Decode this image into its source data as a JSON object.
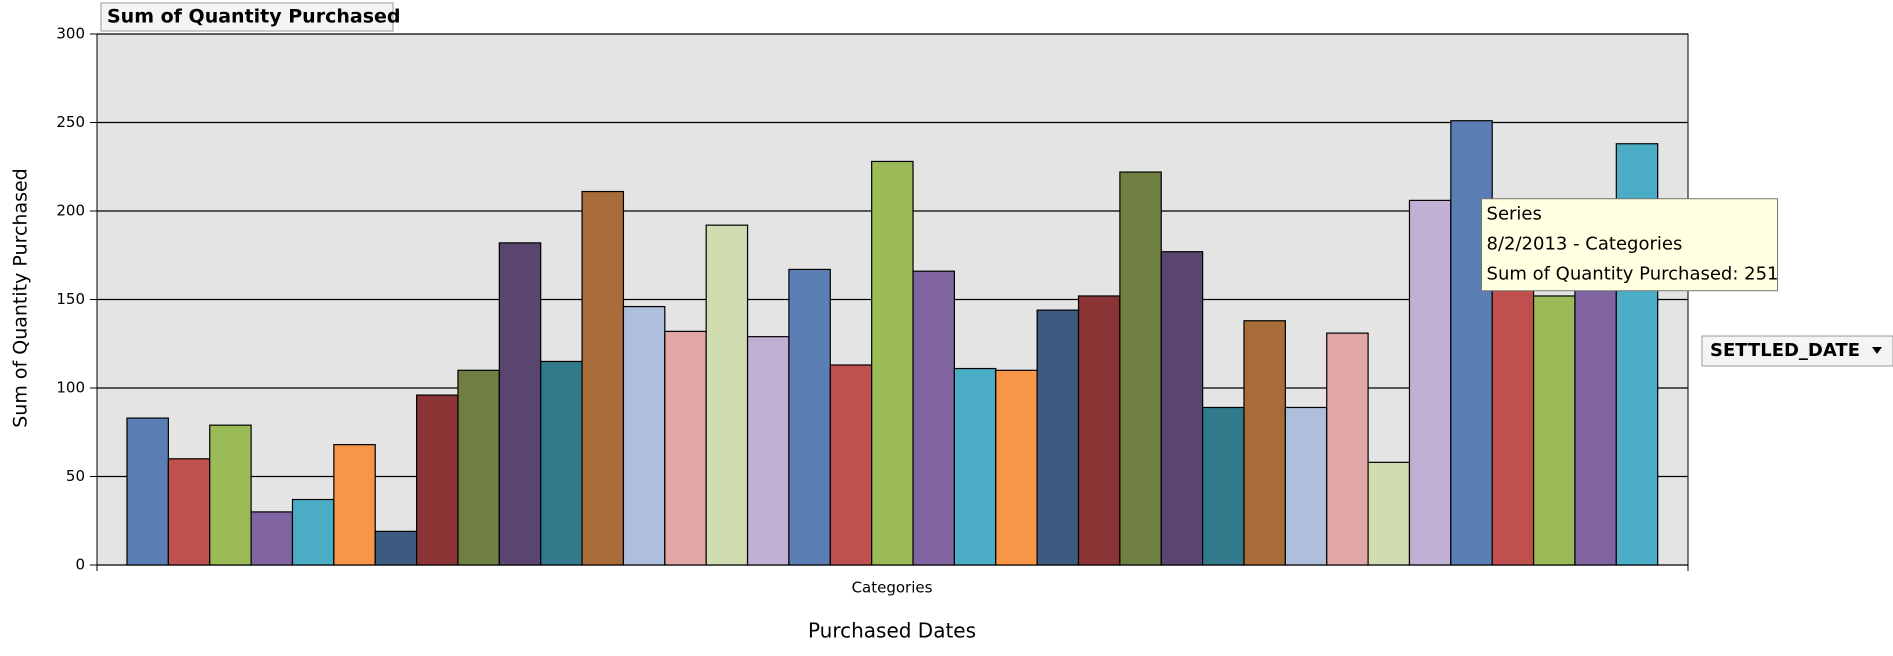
{
  "chart_data": {
    "type": "bar",
    "title": "Sum of Quantity Purchased",
    "y_label": "Sum of Quantity Purchased",
    "x_label": "Categories",
    "x_title": "Purchased Dates",
    "filter_button": "SETTLED_DATE",
    "values": [
      83,
      60,
      79,
      30,
      37,
      68,
      19,
      96,
      110,
      182,
      115,
      211,
      146,
      132,
      192,
      129,
      167,
      113,
      228,
      166,
      111,
      110,
      144,
      152,
      222,
      177,
      89,
      138,
      89,
      131,
      58,
      206,
      251,
      160,
      152,
      160,
      238
    ],
    "colors": [
      "#5b7fb5",
      "#c0504d",
      "#9bbb59",
      "#8064a2",
      "#4bacc6",
      "#f79646",
      "#3d5a80",
      "#8b3436",
      "#6e7f41",
      "#594570",
      "#317a8c",
      "#a86c38",
      "#aebfdc",
      "#e0a7a6",
      "#cfddb0",
      "#c0b1d4",
      "#5b7fb5",
      "#c0504d",
      "#9bbb59",
      "#8064a2",
      "#4bacc6",
      "#f79646",
      "#3d5a80",
      "#8b3436",
      "#6e7f41",
      "#594570",
      "#317a8c",
      "#a86c38",
      "#aebfdc",
      "#e0a7a6",
      "#cfddb0",
      "#c0b1d4",
      "#5b7fb5",
      "#c0504d",
      "#9bbb59",
      "#8064a2",
      "#4bacc6"
    ],
    "ylim": [
      0,
      300
    ],
    "yticks": [
      0,
      50,
      100,
      150,
      200,
      250,
      300
    ],
    "grid": true,
    "tooltip": {
      "index": 32,
      "lines": [
        "Series",
        "8/2/2013 - Categories",
        "Sum of Quantity Purchased: 251"
      ]
    }
  }
}
